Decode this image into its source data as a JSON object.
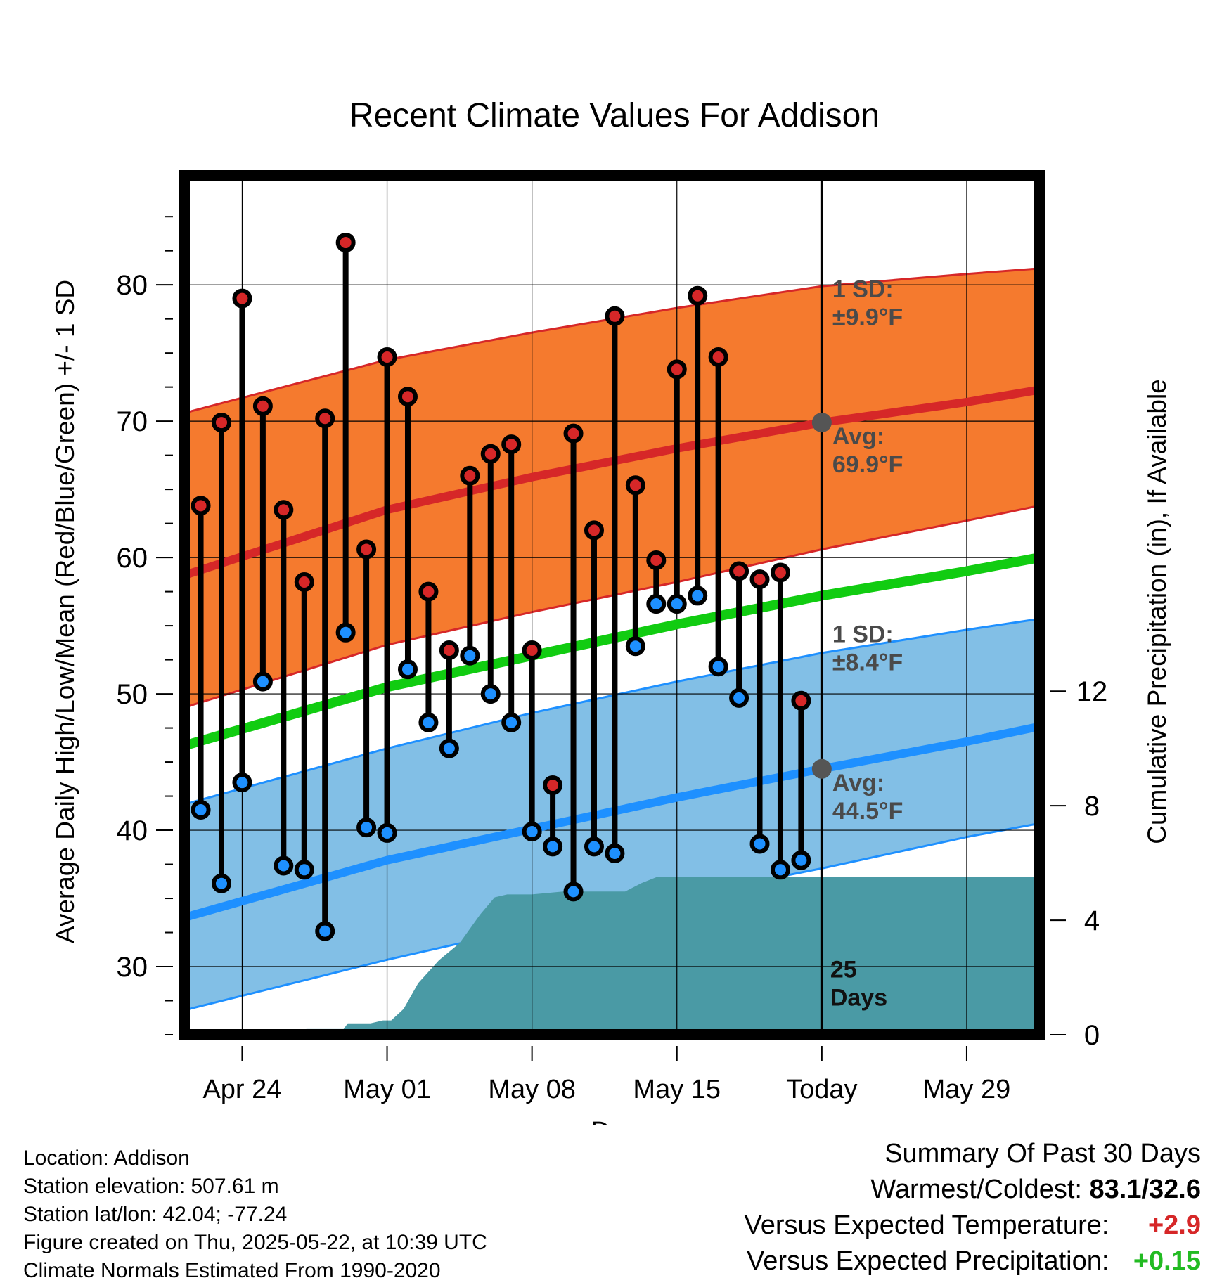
{
  "chart_data": {
    "type": "line",
    "title": "Recent Climate Values For Addison",
    "xlabel": "Day",
    "ylabel": "Average Daily High/Low/Mean (Red/Blue/Green) +/- 1 SD",
    "y2label": "Cumulative Precipitation (in), If Available",
    "ylim": [
      25,
      88
    ],
    "y2lim": [
      0,
      30
    ],
    "xlim": [
      -0.8,
      40.5
    ],
    "x_tick_labels": [
      {
        "day": 2,
        "label": "Apr 24"
      },
      {
        "day": 9,
        "label": "May 01"
      },
      {
        "day": 16,
        "label": "May 08"
      },
      {
        "day": 23,
        "label": "May 15"
      },
      {
        "day": 30,
        "label": "Today"
      },
      {
        "day": 37,
        "label": "May 29"
      }
    ],
    "y_ticks": [
      30,
      40,
      50,
      60,
      70,
      80
    ],
    "y2_ticks": [
      0,
      4,
      8,
      12
    ],
    "grid": true,
    "today_day": 30,
    "days_label": "25\nDays",
    "normals": {
      "days": [
        -0.8,
        9,
        16,
        23,
        30,
        37,
        40.5
      ],
      "high_mean": [
        58.7,
        63.5,
        65.9,
        68.0,
        69.9,
        71.4,
        72.3
      ],
      "high_upper": [
        70.6,
        74.5,
        76.5,
        78.3,
        79.9,
        80.8,
        81.2
      ],
      "high_lower": [
        49.0,
        53.6,
        56.0,
        58.2,
        60.6,
        62.7,
        63.8
      ],
      "low_mean": [
        33.6,
        37.8,
        40.1,
        42.4,
        44.5,
        46.5,
        47.6
      ],
      "low_upper": [
        41.9,
        46.0,
        48.6,
        50.9,
        53.0,
        54.7,
        55.5
      ],
      "low_lower": [
        26.8,
        30.5,
        32.9,
        35.1,
        37.2,
        39.5,
        40.5
      ],
      "mean": [
        46.2,
        50.5,
        52.8,
        55.1,
        57.2,
        59.0,
        60.0
      ]
    },
    "high_sd_label": "1 SD:\n±9.9°F",
    "high_avg_label": "Avg:\n69.9°F",
    "low_sd_label": "1 SD:\n±8.4°F",
    "low_avg_label": "Avg:\n44.5°F",
    "today_high_avg": 69.9,
    "today_low_avg": 44.5,
    "series": [
      {
        "name": "High",
        "color": "#d62728",
        "days": [
          0,
          1,
          2,
          3,
          4,
          5,
          6,
          7,
          8,
          9,
          10,
          11,
          12,
          13,
          14,
          15,
          16,
          17,
          18,
          19,
          20,
          21,
          22,
          23,
          24,
          25,
          26,
          27,
          28,
          29
        ],
        "values": [
          63.8,
          69.9,
          79.0,
          71.1,
          63.5,
          58.2,
          70.2,
          83.1,
          60.6,
          74.7,
          71.8,
          57.5,
          53.2,
          66.0,
          67.6,
          68.3,
          53.2,
          43.3,
          69.1,
          62.0,
          77.7,
          65.3,
          59.8,
          73.8,
          79.2,
          74.7,
          59.0,
          58.4,
          58.9,
          49.5
        ]
      },
      {
        "name": "Low",
        "color": "#1e90ff",
        "days": [
          0,
          1,
          2,
          3,
          4,
          5,
          6,
          7,
          8,
          9,
          10,
          11,
          12,
          13,
          14,
          15,
          16,
          17,
          18,
          19,
          20,
          21,
          22,
          23,
          24,
          25,
          26,
          27,
          28,
          29
        ],
        "values": [
          41.5,
          36.1,
          43.5,
          50.9,
          37.4,
          37.1,
          32.6,
          54.5,
          40.2,
          39.8,
          51.8,
          47.9,
          46.0,
          52.8,
          50.0,
          47.9,
          39.9,
          38.8,
          35.5,
          38.8,
          38.3,
          53.5,
          56.6,
          56.6,
          57.2,
          52.0,
          49.7,
          39.0,
          37.1,
          37.8
        ]
      }
    ],
    "precip": {
      "color": "#4a9aa5",
      "days": [
        -0.8,
        4.9,
        5.1,
        6.9,
        7.1,
        8.2,
        8.8,
        9.2,
        9.8,
        10.5,
        11.5,
        12.5,
        13.5,
        14.2,
        14.8,
        16,
        17.5,
        19,
        20.5,
        21.3,
        22,
        23.5,
        25,
        30,
        35,
        40.5
      ],
      "values": [
        0.0,
        0.0,
        0.2,
        0.2,
        0.4,
        0.4,
        0.5,
        0.5,
        0.9,
        1.8,
        2.6,
        3.2,
        4.2,
        4.8,
        4.9,
        4.9,
        5.0,
        5.0,
        5.0,
        5.3,
        5.5,
        5.5,
        5.5,
        5.5,
        5.5,
        5.5
      ]
    }
  },
  "footer": {
    "location": "Location: Addison",
    "elevation": "Station elevation: 507.61 m",
    "latlon": "Station lat/lon: 42.04; -77.24",
    "created": "Figure created on Thu, 2025-05-22, at 10:39 UTC",
    "normals": "Climate Normals Estimated From 1990-2020"
  },
  "summary": {
    "title": "Summary Of Past 30 Days",
    "warm_label": "Warmest/Coldest:",
    "warm_value": "83.1/32.6",
    "temp_label": "Versus Expected Temperature:",
    "temp_value": "+2.9",
    "precip_label": "Versus Expected Precipitation:",
    "precip_value": "+0.15"
  }
}
